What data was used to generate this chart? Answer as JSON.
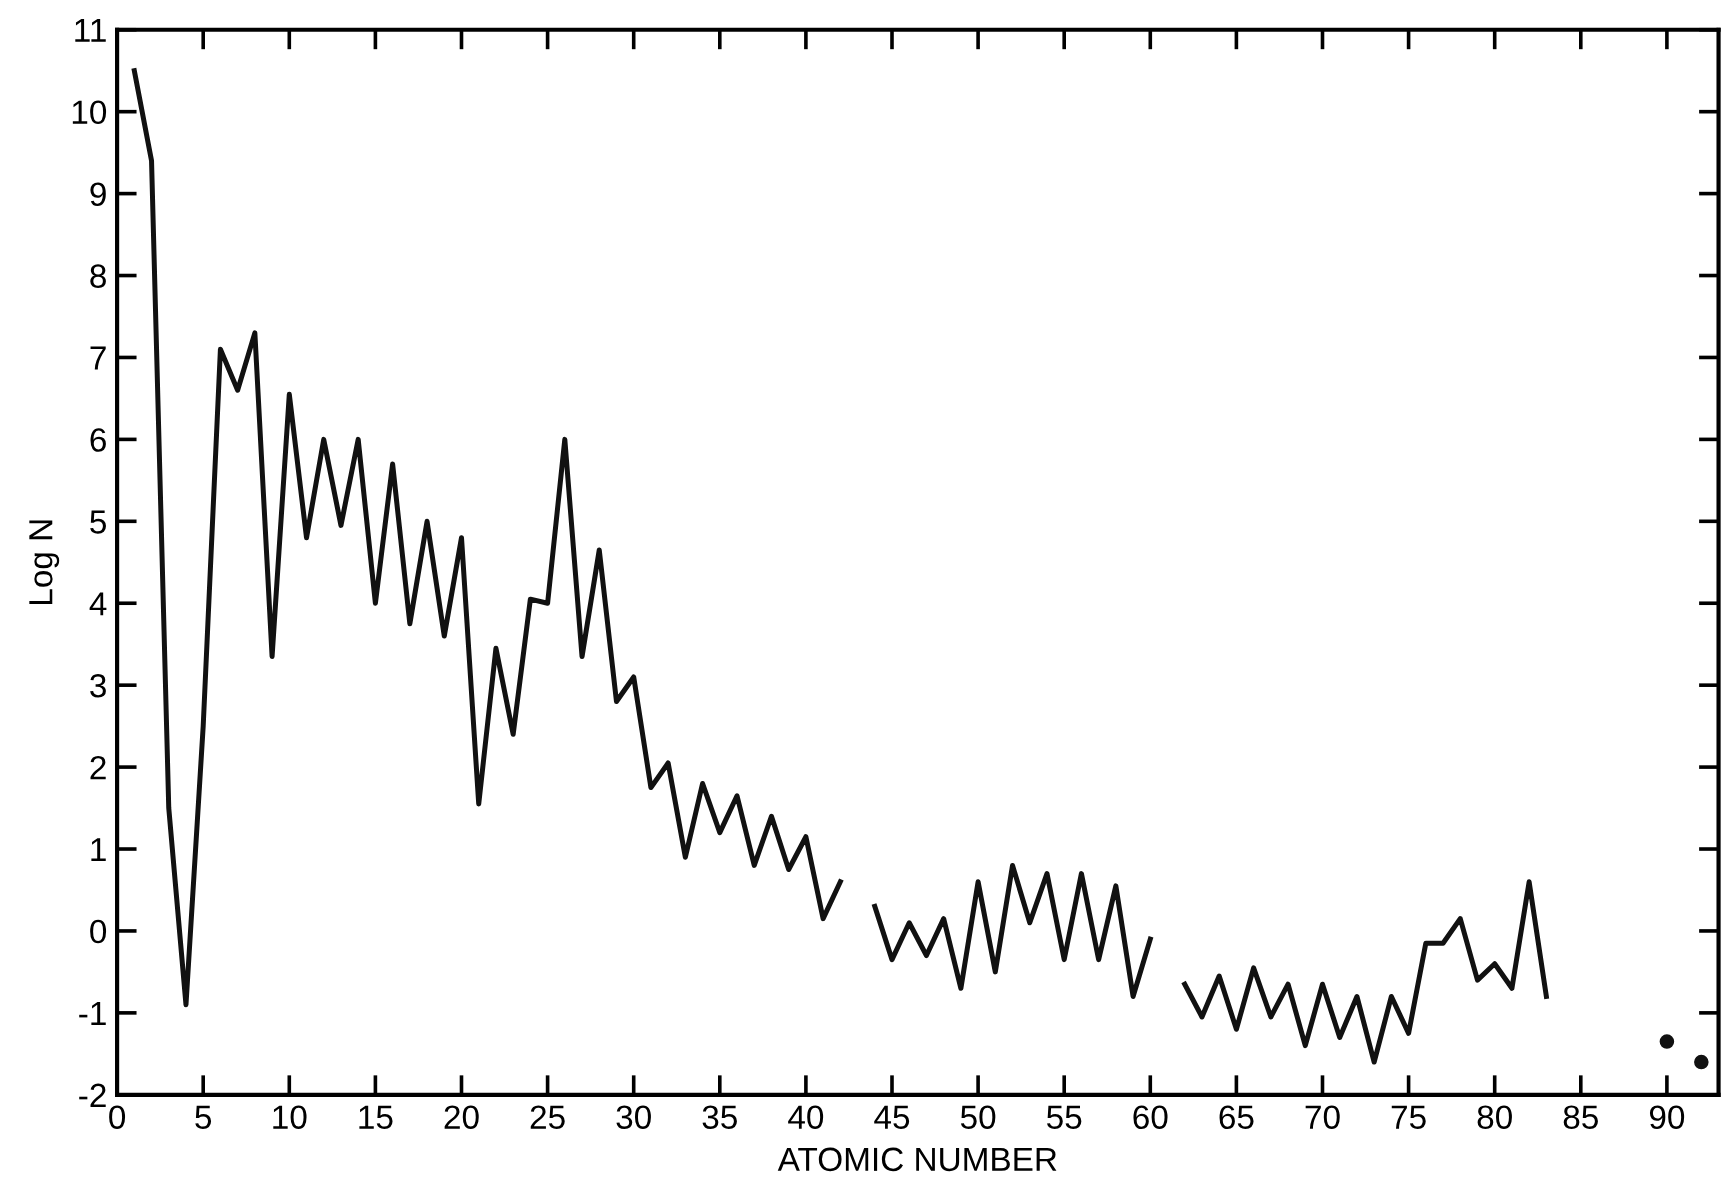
{
  "chart_data": {
    "type": "line",
    "xlabel": "ATOMIC NUMBER",
    "ylabel": "Log N",
    "xlim": [
      0,
      93
    ],
    "ylim": [
      -2,
      11
    ],
    "xticks": [
      0,
      5,
      10,
      15,
      20,
      25,
      30,
      35,
      40,
      45,
      50,
      55,
      60,
      65,
      70,
      75,
      80,
      85,
      90
    ],
    "yticks": [
      -2,
      -1,
      0,
      1,
      2,
      3,
      4,
      5,
      6,
      7,
      8,
      9,
      10,
      11
    ],
    "grid": false,
    "legend": false,
    "marker": "none",
    "line_style": "solid",
    "series": [
      {
        "color": "#111111",
        "x": [
          1,
          2,
          3,
          4,
          5,
          6,
          7,
          8,
          9,
          10,
          11,
          12,
          13,
          14,
          15,
          16,
          17,
          18,
          19,
          20,
          21,
          22,
          23,
          24,
          25,
          26,
          27,
          28,
          29,
          30,
          31,
          32,
          33,
          34,
          35,
          36,
          37,
          38,
          39,
          40,
          41,
          42,
          43,
          44,
          45,
          46,
          47,
          48,
          49,
          50,
          51,
          52,
          53,
          54,
          55,
          56,
          57,
          58,
          59,
          60,
          61,
          62,
          63,
          64,
          65,
          66,
          67,
          68,
          69,
          70,
          71,
          72,
          73,
          74,
          75,
          76,
          77,
          78,
          79,
          80,
          81,
          82,
          83
        ],
        "values": [
          10.5,
          9.4,
          1.5,
          -0.9,
          2.5,
          7.1,
          6.6,
          7.3,
          3.35,
          6.55,
          4.8,
          6.0,
          4.95,
          6.0,
          4.0,
          5.7,
          3.75,
          5.0,
          3.6,
          4.8,
          1.55,
          3.45,
          2.4,
          4.05,
          4.0,
          6.0,
          3.35,
          4.65,
          2.8,
          3.1,
          1.75,
          2.05,
          0.9,
          1.8,
          1.2,
          1.65,
          0.8,
          1.4,
          0.75,
          1.15,
          0.15,
          0.6,
          null,
          0.3,
          -0.35,
          0.1,
          -0.3,
          0.15,
          -0.7,
          0.6,
          -0.5,
          0.8,
          0.1,
          0.7,
          -0.35,
          0.7,
          -0.35,
          0.55,
          -0.8,
          -0.1,
          null,
          -0.65,
          -1.05,
          -0.55,
          -1.2,
          -0.45,
          -1.05,
          -0.65,
          -1.4,
          -0.65,
          -1.3,
          -0.8,
          -1.6,
          -0.8,
          -1.25,
          -0.15,
          -0.15,
          0.15,
          -0.6,
          -0.4,
          -0.7,
          0.6,
          -0.8
        ]
      },
      {
        "type": "scatter",
        "marker": "circle",
        "color": "#111111",
        "x": [
          90,
          92
        ],
        "values": [
          -1.35,
          -1.6
        ]
      }
    ]
  }
}
